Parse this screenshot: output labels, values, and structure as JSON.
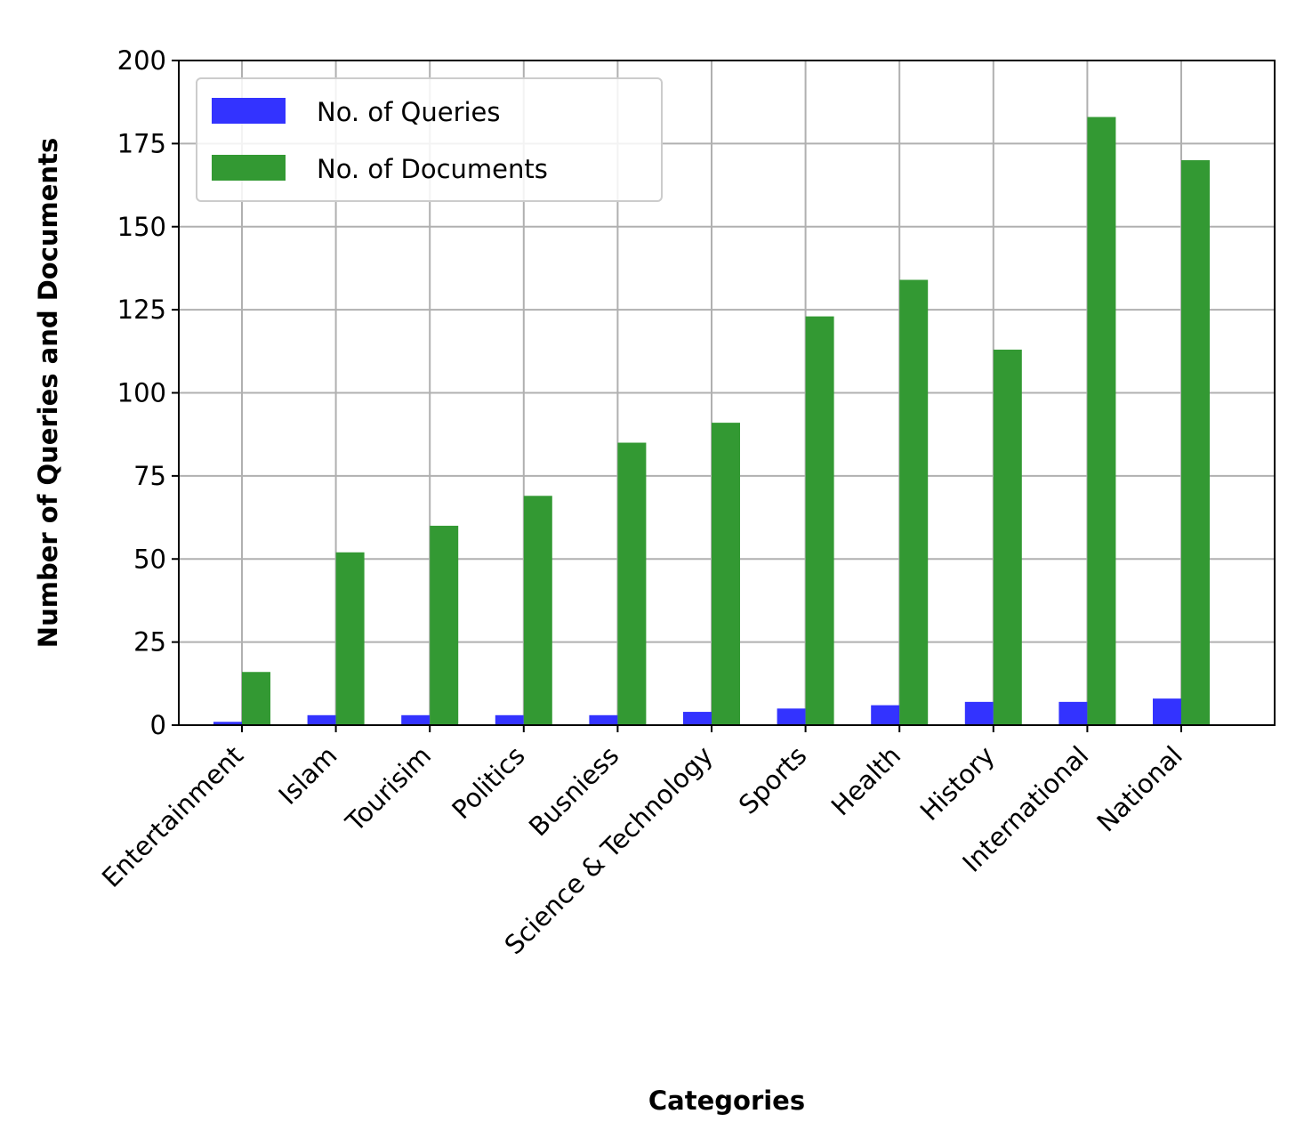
{
  "chart_data": {
    "type": "bar",
    "categories": [
      "Entertainment",
      "Islam",
      "Tourisim",
      "Politics",
      "Busniess",
      "Science & Technology",
      "Sports",
      "Health",
      "History",
      "International",
      "National"
    ],
    "series": [
      {
        "name": "No. of Queries",
        "color": "#3333ff",
        "values": [
          1,
          3,
          3,
          3,
          3,
          4,
          5,
          6,
          7,
          7,
          8
        ]
      },
      {
        "name": "No. of Documents",
        "color": "#339933",
        "values": [
          16,
          52,
          60,
          69,
          85,
          91,
          123,
          134,
          113,
          183,
          170
        ]
      }
    ],
    "title": "",
    "xlabel": "Categories",
    "ylabel": "Number of Queries and Documents",
    "ylim": [
      0,
      200
    ],
    "yticks": [
      0,
      25,
      50,
      75,
      100,
      125,
      150,
      175,
      200
    ],
    "grid": true,
    "legend_position": "top-left"
  }
}
